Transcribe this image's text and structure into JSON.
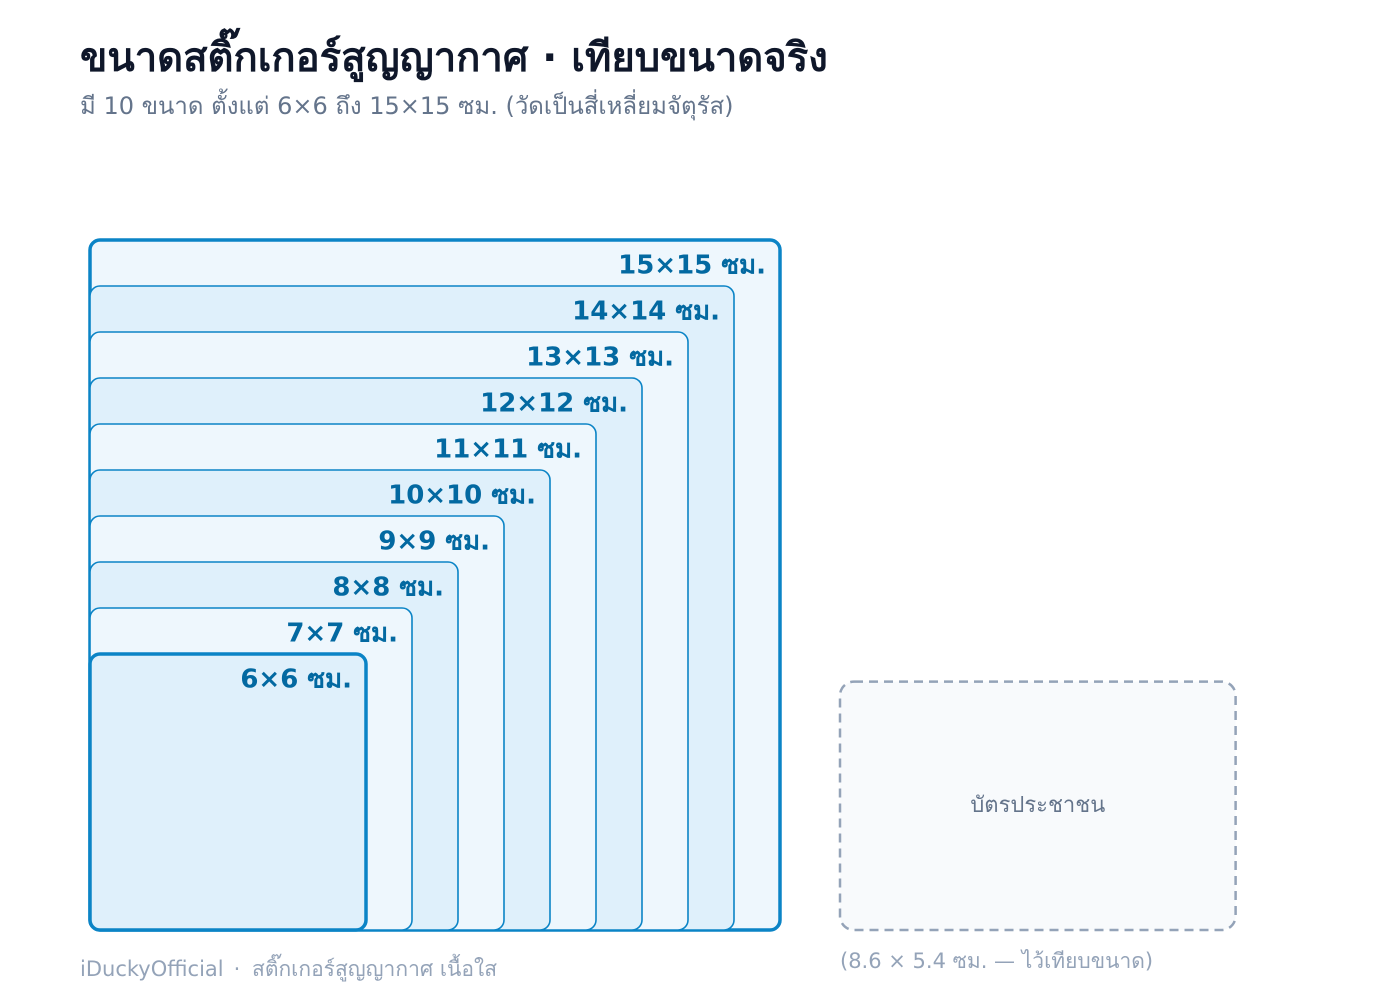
{
  "header": {
    "title": "ขนาดสติ๊กเกอร์สูญญากาศ · เทียบขนาดจริง",
    "subtitle": "มี 10 ขนาด ตั้งแต่ 6×6 ถึง 15×15 ซม. (วัดเป็นสี่เหลี่ยมจัตุรัส)"
  },
  "sizes": [
    {
      "label": "6×6 ซม.",
      "size_cm": 6
    },
    {
      "label": "7×7 ซม.",
      "size_cm": 7
    },
    {
      "label": "8×8 ซม.",
      "size_cm": 8
    },
    {
      "label": "9×9 ซม.",
      "size_cm": 9
    },
    {
      "label": "10×10 ซม.",
      "size_cm": 10
    },
    {
      "label": "11×11 ซม.",
      "size_cm": 11
    },
    {
      "label": "12×12 ซม.",
      "size_cm": 12
    },
    {
      "label": "13×13 ซม.",
      "size_cm": 13
    },
    {
      "label": "14×14 ซม.",
      "size_cm": 14
    },
    {
      "label": "15×15 ซม.",
      "size_cm": 15
    }
  ],
  "card": {
    "label": "บัตรประชาชน",
    "width_cm": 8.6,
    "height_cm": 5.4,
    "note": "(8.6 × 5.4 ซม. — ไว้เทียบขนาด)"
  },
  "footer": {
    "brand": "iDuckyOfficial",
    "product": "สติ๊กเกอร์สูญญากาศ เนื้อใส"
  }
}
